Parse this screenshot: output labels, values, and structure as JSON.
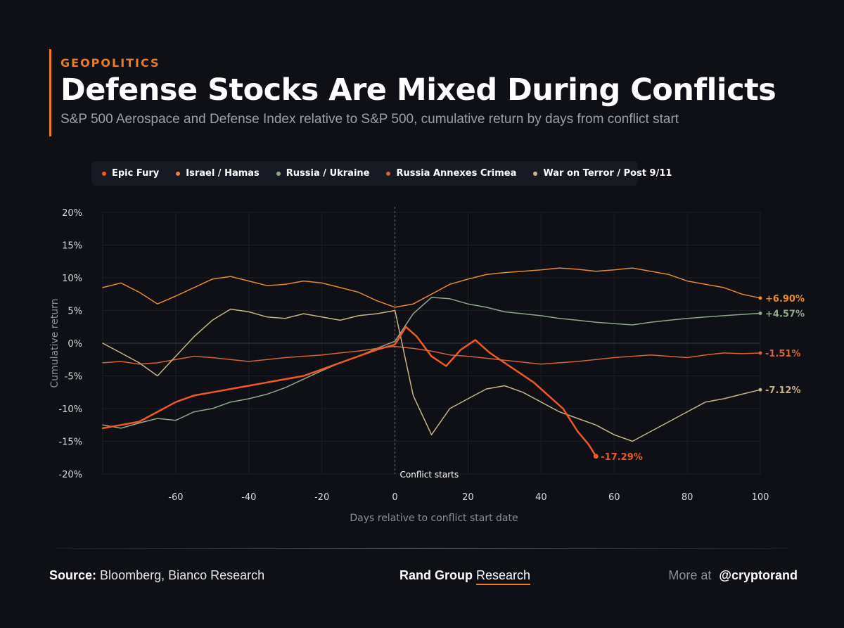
{
  "header": {
    "kicker": "GEOPOLITICS",
    "title": "Defense Stocks Are Mixed During Conflicts",
    "subtitle": "S&P 500 Aerospace and Defense Index relative to S&P 500, cumulative return by days from conflict start"
  },
  "footer": {
    "source_label": "Source:",
    "source_value": "Bloomberg, Bianco Research",
    "brand_main": "Rand Group",
    "brand_accent": "Research",
    "more_label": "More at",
    "handle": "@cryptorand"
  },
  "chart_data": {
    "type": "line",
    "title": "Defense Stocks Are Mixed During Conflicts",
    "xlabel": "Days relative to conflict start date",
    "ylabel": "Cumulative return",
    "xlim": [
      -80,
      100
    ],
    "ylim": [
      -20,
      20
    ],
    "xticks": [
      -60,
      -40,
      -20,
      0,
      20,
      40,
      60,
      80,
      100
    ],
    "xtick_labels": [
      "-60",
      "-40",
      "-20",
      "0",
      "20",
      "40",
      "60",
      "80",
      "100"
    ],
    "yticks": [
      -20,
      -15,
      -10,
      -5,
      0,
      5,
      10,
      15,
      20
    ],
    "ytick_labels": [
      "-20%",
      "-15%",
      "-10%",
      "-5%",
      "0%",
      "5%",
      "10%",
      "15%",
      "20%"
    ],
    "grid": true,
    "legend_position": "top-left",
    "annotation": {
      "x": 0,
      "label": "Conflict starts"
    },
    "series": [
      {
        "name": "Israel / Hamas",
        "color": "#e88a2c",
        "width": 1.5,
        "end_label": "+6.90%",
        "x": [
          -80,
          -75,
          -70,
          -65,
          -60,
          -55,
          -50,
          -45,
          -40,
          -35,
          -30,
          -25,
          -20,
          -15,
          -10,
          -5,
          0,
          5,
          10,
          15,
          20,
          25,
          30,
          35,
          40,
          45,
          50,
          55,
          60,
          65,
          70,
          75,
          80,
          85,
          90,
          95,
          100
        ],
        "values": [
          8.5,
          9.2,
          7.8,
          6.0,
          7.2,
          8.5,
          9.8,
          10.2,
          9.5,
          8.8,
          9.0,
          9.5,
          9.2,
          8.5,
          7.8,
          6.5,
          5.5,
          6.0,
          7.5,
          9.0,
          9.8,
          10.5,
          10.8,
          11.0,
          11.2,
          11.5,
          11.3,
          11.0,
          11.2,
          11.5,
          11.0,
          10.5,
          9.5,
          9.0,
          8.5,
          7.5,
          6.9
        ]
      },
      {
        "name": "Russia / Ukraine",
        "color": "#8fa98a",
        "width": 1.5,
        "end_label": "+4.57%",
        "x": [
          -80,
          -75,
          -70,
          -65,
          -60,
          -55,
          -50,
          -45,
          -40,
          -35,
          -30,
          -25,
          -20,
          -15,
          -10,
          -5,
          0,
          5,
          10,
          15,
          20,
          25,
          30,
          35,
          40,
          45,
          50,
          55,
          60,
          65,
          70,
          75,
          80,
          85,
          90,
          95,
          100
        ],
        "values": [
          -12.5,
          -13.0,
          -12.2,
          -11.5,
          -11.8,
          -10.5,
          -10.0,
          -9.0,
          -8.5,
          -7.8,
          -6.8,
          -5.5,
          -4.2,
          -3.0,
          -2.0,
          -0.8,
          0.3,
          4.5,
          7.0,
          6.8,
          6.0,
          5.5,
          4.8,
          4.5,
          4.2,
          3.8,
          3.5,
          3.2,
          3.0,
          2.8,
          3.2,
          3.5,
          3.8,
          4.0,
          4.2,
          4.4,
          4.57
        ]
      },
      {
        "name": "Russia Annexes Crimea",
        "color": "#d4633a",
        "width": 1.5,
        "end_label": "-1.51%",
        "x": [
          -80,
          -75,
          -70,
          -65,
          -60,
          -55,
          -50,
          -45,
          -40,
          -35,
          -30,
          -25,
          -20,
          -15,
          -10,
          -5,
          0,
          5,
          10,
          15,
          20,
          25,
          30,
          35,
          40,
          45,
          50,
          55,
          60,
          65,
          70,
          75,
          80,
          85,
          90,
          95,
          100
        ],
        "values": [
          -3.0,
          -2.8,
          -3.2,
          -3.0,
          -2.5,
          -2.0,
          -2.2,
          -2.5,
          -2.8,
          -2.5,
          -2.2,
          -2.0,
          -1.8,
          -1.5,
          -1.2,
          -0.8,
          -0.5,
          -0.8,
          -1.2,
          -1.8,
          -2.0,
          -2.3,
          -2.6,
          -2.9,
          -3.2,
          -3.0,
          -2.8,
          -2.5,
          -2.2,
          -2.0,
          -1.8,
          -2.0,
          -2.2,
          -1.8,
          -1.5,
          -1.6,
          -1.51
        ]
      },
      {
        "name": "War on Terror / Post 9/11",
        "color": "#c9b48a",
        "width": 1.5,
        "end_label": "-7.12%",
        "x": [
          -80,
          -75,
          -70,
          -65,
          -60,
          -55,
          -50,
          -45,
          -40,
          -35,
          -30,
          -25,
          -20,
          -15,
          -10,
          -5,
          0,
          5,
          10,
          15,
          20,
          25,
          30,
          35,
          40,
          45,
          50,
          55,
          60,
          65,
          70,
          75,
          80,
          85,
          90,
          95,
          100
        ],
        "values": [
          0.0,
          -1.5,
          -3.0,
          -5.0,
          -2.0,
          1.0,
          3.5,
          5.2,
          4.8,
          4.0,
          3.8,
          4.5,
          4.0,
          3.5,
          4.2,
          4.5,
          5.0,
          -8.0,
          -14.0,
          -10.0,
          -8.5,
          -7.0,
          -6.5,
          -7.5,
          -9.0,
          -10.5,
          -11.5,
          -12.5,
          -14.0,
          -15.0,
          -13.5,
          -12.0,
          -10.5,
          -9.0,
          -8.5,
          -7.8,
          -7.12
        ]
      },
      {
        "name": "Epic Fury",
        "color": "#f05a22",
        "width": 2.5,
        "end_label": "-17.29%",
        "x": [
          -80,
          -75,
          -70,
          -65,
          -60,
          -55,
          -50,
          -45,
          -40,
          -35,
          -30,
          -25,
          -20,
          -15,
          -10,
          -5,
          0,
          3,
          6,
          10,
          14,
          18,
          22,
          26,
          30,
          34,
          38,
          42,
          46,
          50,
          53,
          55
        ],
        "values": [
          -13.0,
          -12.5,
          -12.0,
          -10.5,
          -9.0,
          -8.0,
          -7.5,
          -7.0,
          -6.5,
          -6.0,
          -5.5,
          -5.0,
          -4.0,
          -3.0,
          -2.0,
          -1.0,
          -0.2,
          2.5,
          1.0,
          -2.0,
          -3.5,
          -1.0,
          0.5,
          -1.5,
          -3.0,
          -4.5,
          -6.0,
          -8.0,
          -10.0,
          -13.5,
          -15.5,
          -17.29
        ]
      }
    ]
  }
}
